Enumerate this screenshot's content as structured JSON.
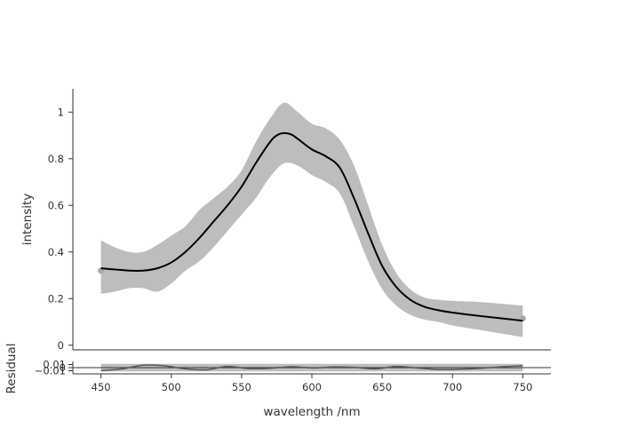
{
  "chart_data": [
    {
      "type": "line",
      "panel": "main",
      "xlabel": "",
      "ylabel": "intensity",
      "xlim": [
        430,
        770
      ],
      "ylim": [
        -0.02,
        1.1
      ],
      "y_ticks": [
        "0",
        "0.2",
        "0.4",
        "0.6",
        "0.8",
        "1"
      ],
      "y_tick_values": [
        0,
        0.2,
        0.4,
        0.6,
        0.8,
        1.0
      ],
      "grid": false,
      "colors": {
        "fit_line": "#000000",
        "band": "#bdbdbd",
        "points": "#a8a8a8"
      },
      "series": [
        {
          "role": "fit",
          "x": [
            450,
            460,
            470,
            480,
            490,
            500,
            510,
            520,
            530,
            540,
            550,
            560,
            570,
            575,
            580,
            585,
            590,
            600,
            610,
            620,
            630,
            640,
            650,
            660,
            670,
            680,
            690,
            700,
            720,
            750
          ],
          "y": [
            0.33,
            0.325,
            0.32,
            0.32,
            0.33,
            0.355,
            0.4,
            0.46,
            0.53,
            0.6,
            0.68,
            0.78,
            0.87,
            0.9,
            0.91,
            0.905,
            0.885,
            0.84,
            0.81,
            0.76,
            0.63,
            0.48,
            0.34,
            0.25,
            0.195,
            0.165,
            0.15,
            0.14,
            0.125,
            0.105
          ]
        },
        {
          "role": "band",
          "x": [
            450,
            460,
            470,
            480,
            490,
            500,
            510,
            520,
            530,
            540,
            550,
            560,
            570,
            580,
            590,
            600,
            610,
            620,
            630,
            640,
            650,
            660,
            670,
            680,
            690,
            700,
            720,
            750
          ],
          "upper": [
            0.45,
            0.42,
            0.4,
            0.4,
            0.43,
            0.47,
            0.51,
            0.58,
            0.63,
            0.68,
            0.75,
            0.87,
            0.97,
            1.04,
            1.0,
            0.95,
            0.93,
            0.88,
            0.77,
            0.6,
            0.43,
            0.31,
            0.24,
            0.205,
            0.195,
            0.19,
            0.185,
            0.17
          ],
          "lower": [
            0.22,
            0.23,
            0.245,
            0.245,
            0.23,
            0.265,
            0.32,
            0.36,
            0.42,
            0.49,
            0.56,
            0.63,
            0.72,
            0.78,
            0.77,
            0.73,
            0.7,
            0.65,
            0.51,
            0.36,
            0.24,
            0.17,
            0.13,
            0.11,
            0.1,
            0.085,
            0.065,
            0.035
          ]
        },
        {
          "role": "points",
          "x": [
            450,
            750
          ],
          "y": [
            0.32,
            0.115
          ]
        }
      ]
    },
    {
      "type": "line",
      "panel": "residual",
      "xlabel": "wavelength /nm",
      "ylabel": "Residual",
      "xlim": [
        430,
        770
      ],
      "ylim": [
        -0.02,
        0.02
      ],
      "x_ticks": [
        "450",
        "500",
        "550",
        "600",
        "650",
        "700",
        "750"
      ],
      "x_tick_values": [
        450,
        500,
        550,
        600,
        650,
        700,
        750
      ],
      "y_ticks": [
        "0.01",
        "0",
        "−0.01"
      ],
      "y_tick_values": [
        0.01,
        0,
        -0.01
      ],
      "zero_line": true,
      "colors": {
        "residual_line": "#555555",
        "band": "#bdbdbd"
      },
      "series": [
        {
          "role": "residual",
          "x": [
            450,
            465,
            480,
            495,
            510,
            525,
            540,
            555,
            570,
            585,
            600,
            615,
            630,
            645,
            660,
            675,
            690,
            705,
            720,
            735,
            750
          ],
          "y": [
            -0.01,
            -0.004,
            0.008,
            0.006,
            -0.004,
            -0.007,
            0.004,
            -0.003,
            -0.002,
            0.003,
            -0.001,
            0.002,
            0.001,
            -0.004,
            0.004,
            -0.001,
            -0.006,
            -0.005,
            -0.002,
            0.003,
            0.006
          ]
        },
        {
          "role": "band",
          "x": [
            450,
            750
          ],
          "upper": [
            0.012,
            0.012
          ],
          "lower": [
            -0.012,
            -0.012
          ]
        }
      ]
    }
  ]
}
